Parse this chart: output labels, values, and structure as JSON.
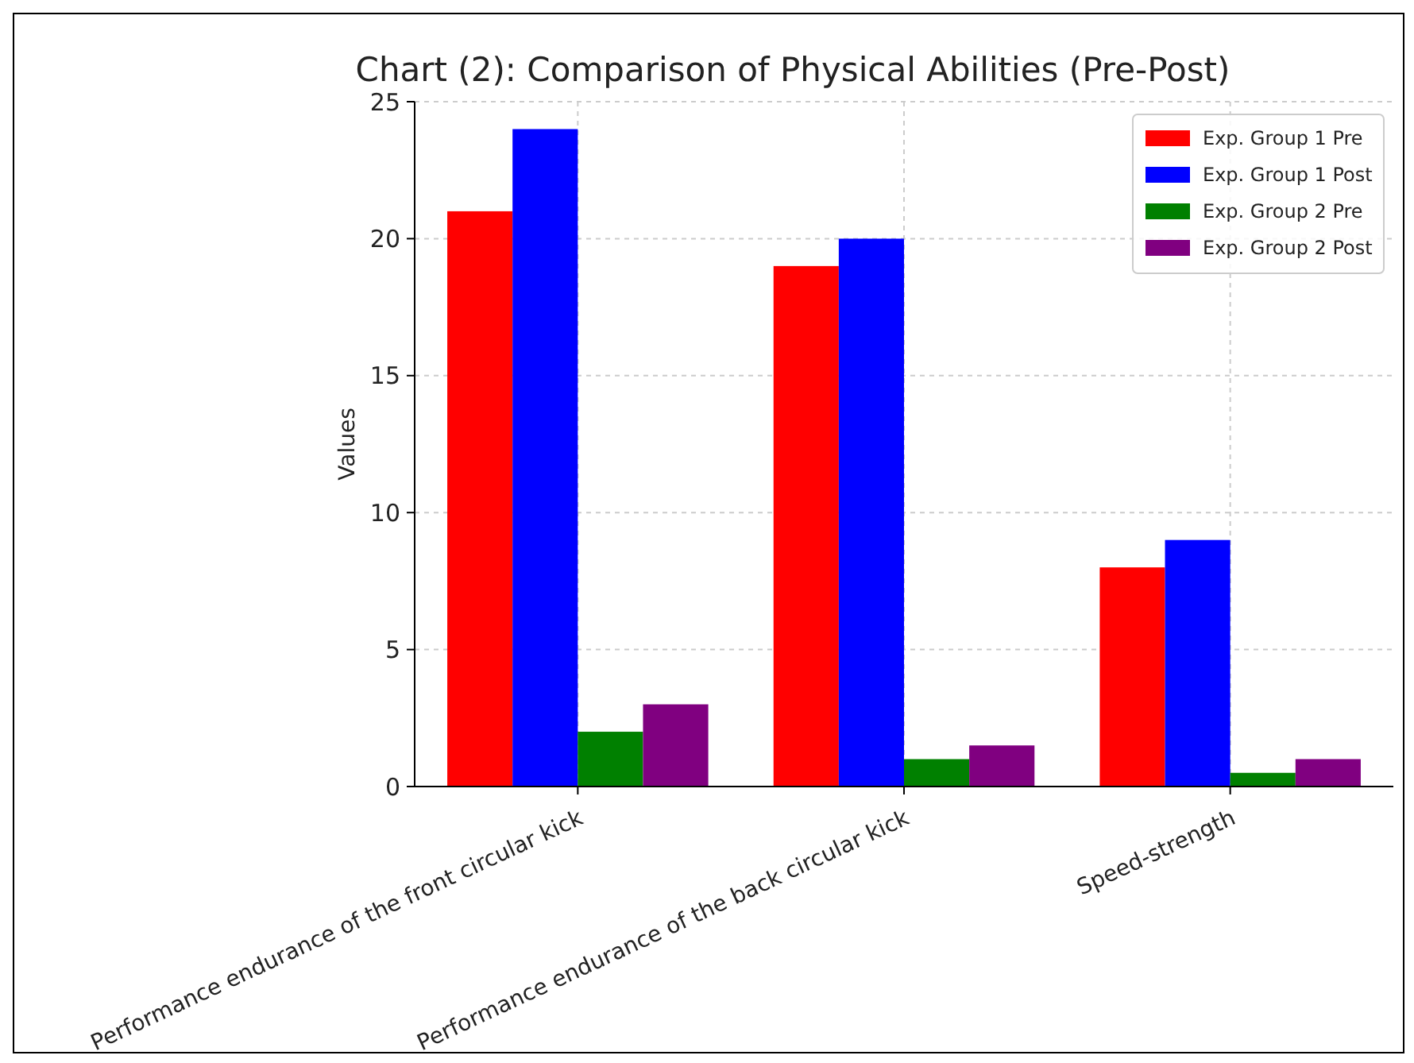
{
  "chart_data": {
    "type": "bar",
    "title": "Chart (2): Comparison of Physical Abilities (Pre-Post)",
    "ylabel": "Values",
    "categories": [
      "Performance endurance of the front circular kick",
      "Performance endurance of the back circular kick",
      "Speed-strength"
    ],
    "series": [
      {
        "name": "Exp. Group 1 Pre",
        "color": "#ff0000",
        "values": [
          21,
          19,
          8
        ]
      },
      {
        "name": "Exp. Group 1 Post",
        "color": "#0000ff",
        "values": [
          24,
          20,
          9
        ]
      },
      {
        "name": "Exp. Group 2 Pre",
        "color": "#008000",
        "values": [
          2,
          1,
          0.5
        ]
      },
      {
        "name": "Exp. Group 2 Post",
        "color": "#800080",
        "values": [
          3,
          1.5,
          1
        ]
      }
    ],
    "ylim": [
      0,
      25
    ],
    "yticks": [
      0,
      5,
      10,
      15,
      20,
      25
    ],
    "grid": true,
    "legend": "top right"
  }
}
